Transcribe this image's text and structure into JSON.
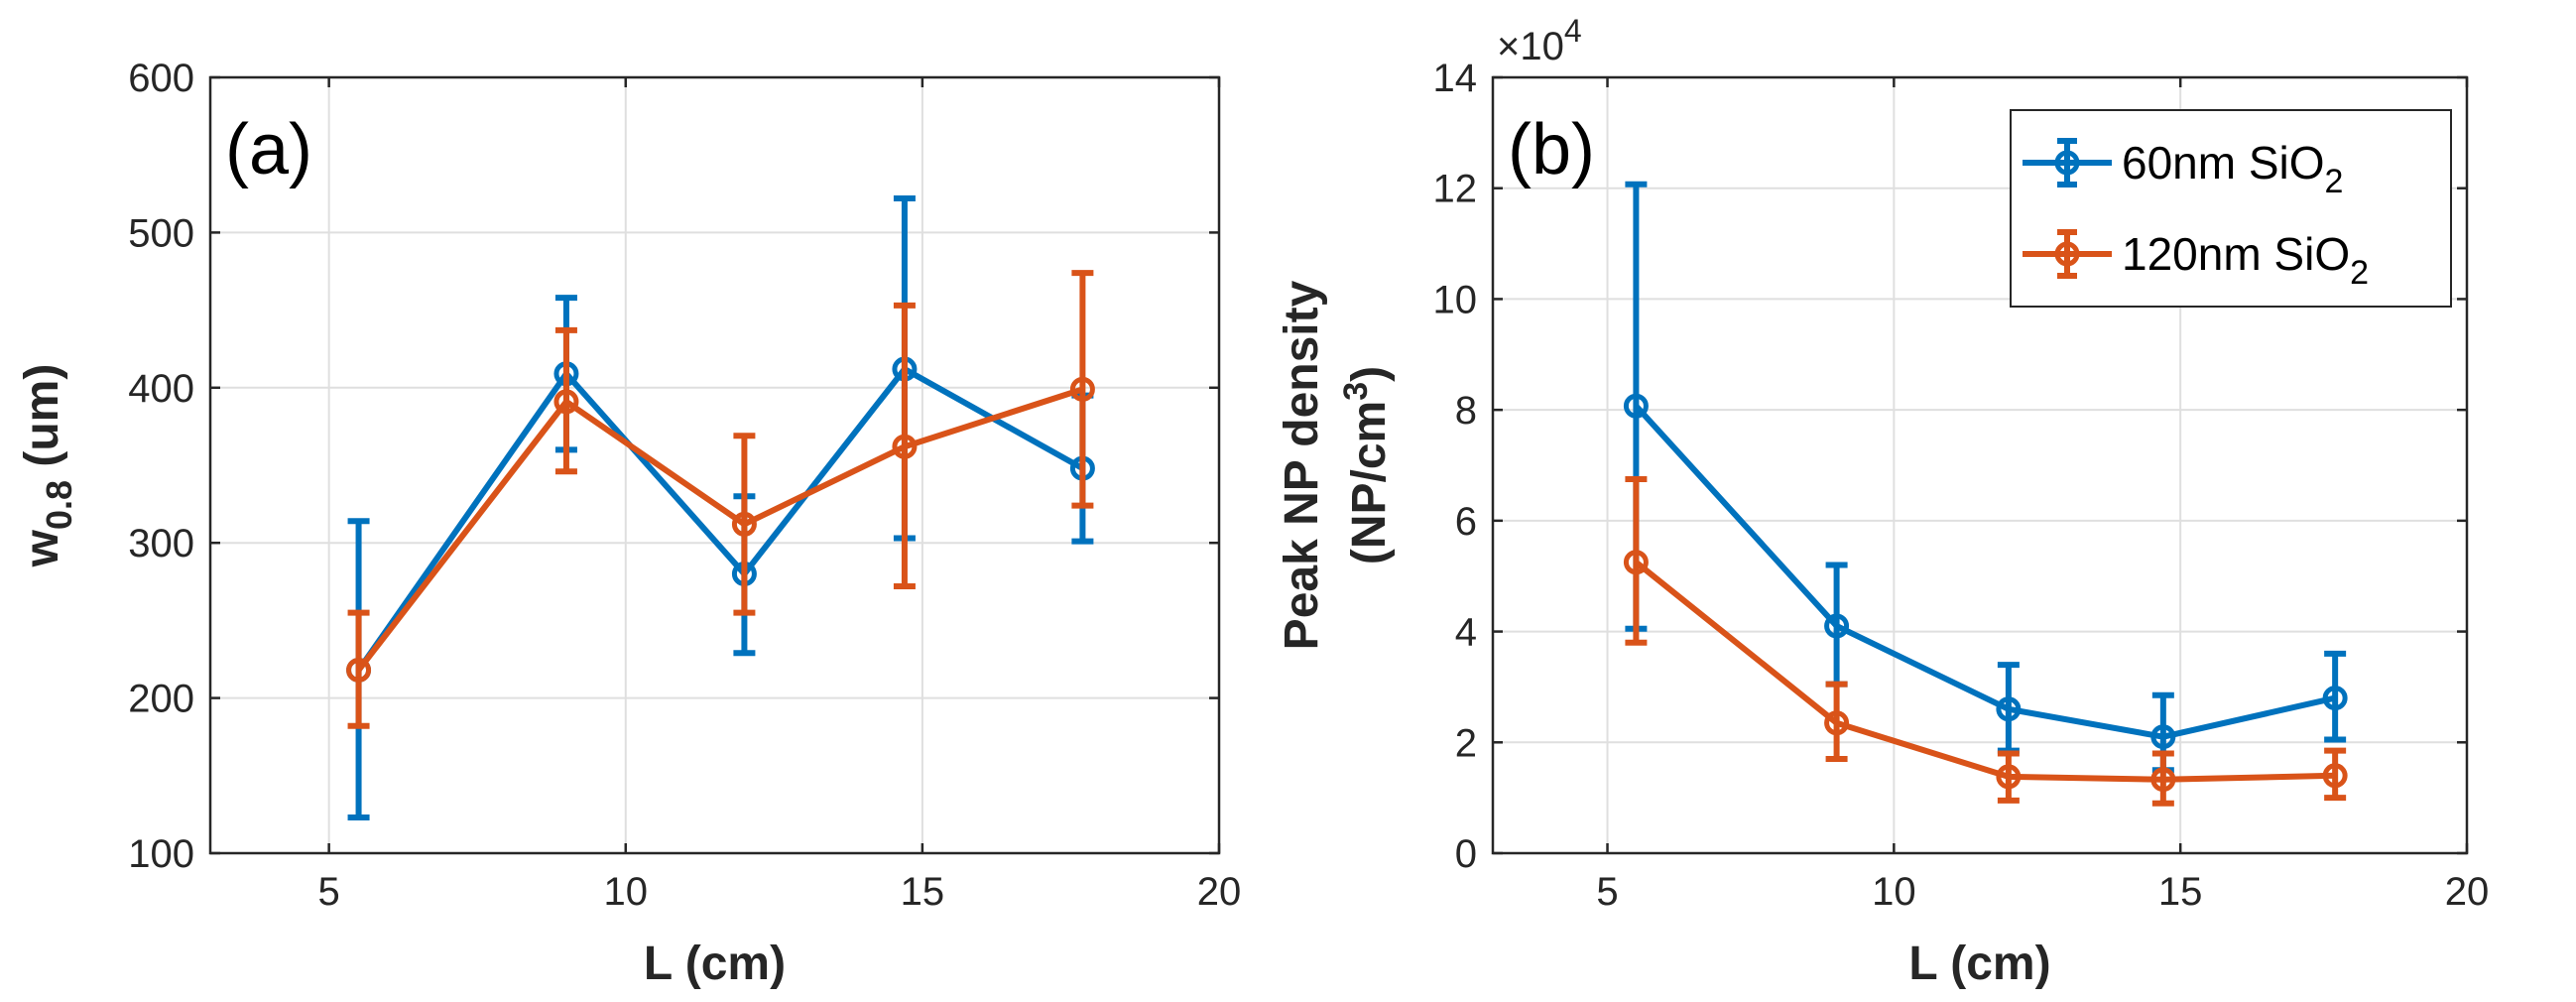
{
  "chart_data": [
    {
      "type": "line",
      "panel_label": "(a)",
      "xlabel": "L (cm)",
      "ylabel_base": "w",
      "ylabel_sub": "0.8",
      "ylabel_tail": " (um)",
      "xlim": [
        3,
        20
      ],
      "ylim": [
        100,
        600
      ],
      "xticks": [
        5,
        10,
        15,
        20
      ],
      "yticks": [
        100,
        200,
        300,
        400,
        500,
        600
      ],
      "grid": true,
      "series": [
        {
          "name": "60nm SiO2",
          "color": "#0072BD",
          "x": [
            5.5,
            9.0,
            12.0,
            14.7,
            17.7
          ],
          "y": [
            218,
            409,
            280,
            412,
            348
          ],
          "err_low": [
            123,
            360,
            229,
            303,
            301
          ],
          "err_high": [
            314,
            458,
            330,
            522,
            395
          ]
        },
        {
          "name": "120nm SiO2",
          "color": "#D95319",
          "x": [
            5.5,
            9.0,
            12.0,
            14.7,
            17.7
          ],
          "y": [
            218,
            391,
            312,
            362,
            399
          ],
          "err_low": [
            182,
            346,
            255,
            272,
            324
          ],
          "err_high": [
            255,
            437,
            369,
            453,
            474
          ]
        }
      ]
    },
    {
      "type": "line",
      "panel_label": "(b)",
      "xlabel": "L (cm)",
      "ylabel_line1": "Peak NP density",
      "ylabel_line2_base": "(NP/cm",
      "ylabel_line2_sup": "3",
      "ylabel_line2_tail": ")",
      "multiplier_base": "×10",
      "multiplier_exp": "4",
      "xlim": [
        3,
        20
      ],
      "ylim": [
        0,
        14
      ],
      "xticks": [
        5,
        10,
        15,
        20
      ],
      "yticks": [
        0,
        2,
        4,
        6,
        8,
        10,
        12,
        14
      ],
      "grid": true,
      "legend_position": "top-right",
      "series": [
        {
          "name_base": "60nm SiO",
          "name_sub": "2",
          "color": "#0072BD",
          "x": [
            5.5,
            9.0,
            12.0,
            14.7,
            17.7
          ],
          "y": [
            8.07,
            4.1,
            2.6,
            2.1,
            2.8
          ],
          "err_low": [
            4.05,
            3.05,
            1.85,
            1.5,
            2.05
          ],
          "err_high": [
            12.07,
            5.2,
            3.4,
            2.85,
            3.6
          ]
        },
        {
          "name_base": "120nm SiO",
          "name_sub": "2",
          "color": "#D95319",
          "x": [
            5.5,
            9.0,
            12.0,
            14.7,
            17.7
          ],
          "y": [
            5.25,
            2.35,
            1.38,
            1.33,
            1.4
          ],
          "err_low": [
            3.8,
            1.7,
            0.95,
            0.9,
            1.0
          ],
          "err_high": [
            6.75,
            3.05,
            1.8,
            1.8,
            1.85
          ]
        }
      ]
    }
  ]
}
